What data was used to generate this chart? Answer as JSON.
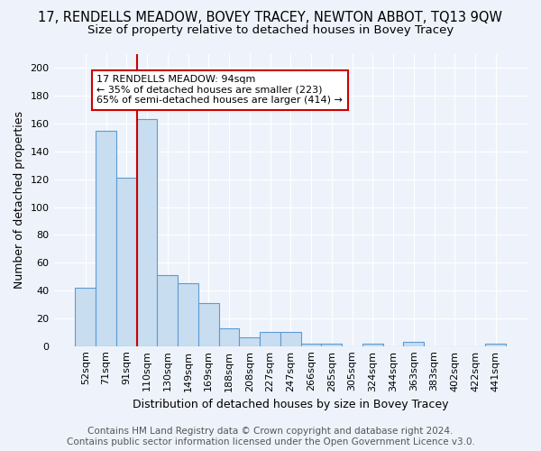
{
  "title": "17, RENDELLS MEADOW, BOVEY TRACEY, NEWTON ABBOT, TQ13 9QW",
  "subtitle": "Size of property relative to detached houses in Bovey Tracey",
  "xlabel": "Distribution of detached houses by size in Bovey Tracey",
  "ylabel": "Number of detached properties",
  "categories": [
    "52sqm",
    "71sqm",
    "91sqm",
    "110sqm",
    "130sqm",
    "149sqm",
    "169sqm",
    "188sqm",
    "208sqm",
    "227sqm",
    "247sqm",
    "266sqm",
    "285sqm",
    "305sqm",
    "324sqm",
    "344sqm",
    "363sqm",
    "383sqm",
    "402sqm",
    "422sqm",
    "441sqm"
  ],
  "values": [
    42,
    155,
    121,
    163,
    51,
    45,
    31,
    13,
    6,
    10,
    10,
    2,
    2,
    0,
    2,
    0,
    3,
    0,
    0,
    0,
    2
  ],
  "bar_color": "#c8ddf0",
  "bar_edge_color": "#5b9bd5",
  "vline_x_pos": 2.5,
  "vline_color": "#cc0000",
  "annotation_text": "17 RENDELLS MEADOW: 94sqm\n← 35% of detached houses are smaller (223)\n65% of semi-detached houses are larger (414) →",
  "annotation_box_color": "white",
  "annotation_box_edge": "#cc0000",
  "ylim": [
    0,
    210
  ],
  "yticks": [
    0,
    20,
    40,
    60,
    80,
    100,
    120,
    140,
    160,
    180,
    200
  ],
  "footer": "Contains HM Land Registry data © Crown copyright and database right 2024.\nContains public sector information licensed under the Open Government Licence v3.0.",
  "background_color": "#eef3fb",
  "plot_bg_color": "#eef3fb",
  "grid_color": "#ffffff",
  "title_fontsize": 10.5,
  "subtitle_fontsize": 9.5,
  "axis_label_fontsize": 9,
  "tick_fontsize": 8,
  "annotation_fontsize": 8,
  "footer_fontsize": 7.5
}
